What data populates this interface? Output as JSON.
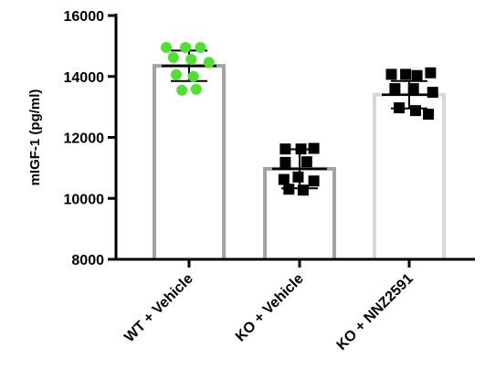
{
  "chart_data": {
    "type": "bar",
    "title": "",
    "xlabel": "",
    "ylabel": "mIGF-1 (pg/ml)",
    "ylim": [
      8000,
      16000
    ],
    "yticks": [
      8000,
      10000,
      12000,
      14000,
      16000
    ],
    "ytick_labels": [
      "8000",
      "10000",
      "12000",
      "14000",
      "16000"
    ],
    "categories": [
      "WT + Vehicle",
      "KO + Vehicle",
      "KO + NNZ2591"
    ],
    "grid": false,
    "legend": "none",
    "bars": [
      {
        "category": "WT + Vehicle",
        "mean": 14350,
        "sd": 500,
        "bar_color": "#a3a3a3",
        "marker": "circle",
        "marker_color": "#4de22f",
        "points": [
          {
            "x": -0.32,
            "y": 14950
          },
          {
            "x": -0.05,
            "y": 14950
          },
          {
            "x": 0.16,
            "y": 14950
          },
          {
            "x": -0.22,
            "y": 14620
          },
          {
            "x": 0.03,
            "y": 14560
          },
          {
            "x": 0.28,
            "y": 14460
          },
          {
            "x": -0.18,
            "y": 14060
          },
          {
            "x": 0.06,
            "y": 14000
          },
          {
            "x": -0.1,
            "y": 13550
          },
          {
            "x": 0.1,
            "y": 13580
          }
        ]
      },
      {
        "category": "KO + Vehicle",
        "mean": 10970,
        "sd": 640,
        "bar_color": "#a3a3a3",
        "marker": "square",
        "marker_color": "#000000",
        "points": [
          {
            "x": -0.2,
            "y": 11620
          },
          {
            "x": 0.02,
            "y": 11620
          },
          {
            "x": 0.2,
            "y": 11640
          },
          {
            "x": -0.2,
            "y": 11180
          },
          {
            "x": 0.1,
            "y": 11200
          },
          {
            "x": -0.02,
            "y": 10700
          },
          {
            "x": -0.22,
            "y": 10620
          },
          {
            "x": 0.2,
            "y": 10570
          },
          {
            "x": -0.15,
            "y": 10300
          },
          {
            "x": 0.05,
            "y": 10270
          }
        ]
      },
      {
        "category": "KO + NNZ2591",
        "mean": 13400,
        "sd": 450,
        "bar_color": "#d8d8d8",
        "marker": "square",
        "marker_color": "#000000",
        "points": [
          {
            "x": -0.25,
            "y": 14070
          },
          {
            "x": -0.05,
            "y": 14070
          },
          {
            "x": 0.11,
            "y": 14030
          },
          {
            "x": 0.3,
            "y": 14120
          },
          {
            "x": -0.2,
            "y": 13600
          },
          {
            "x": 0.06,
            "y": 13600
          },
          {
            "x": 0.33,
            "y": 13480
          },
          {
            "x": -0.14,
            "y": 12970
          },
          {
            "x": 0.09,
            "y": 12880
          },
          {
            "x": 0.27,
            "y": 12760
          }
        ]
      }
    ]
  }
}
